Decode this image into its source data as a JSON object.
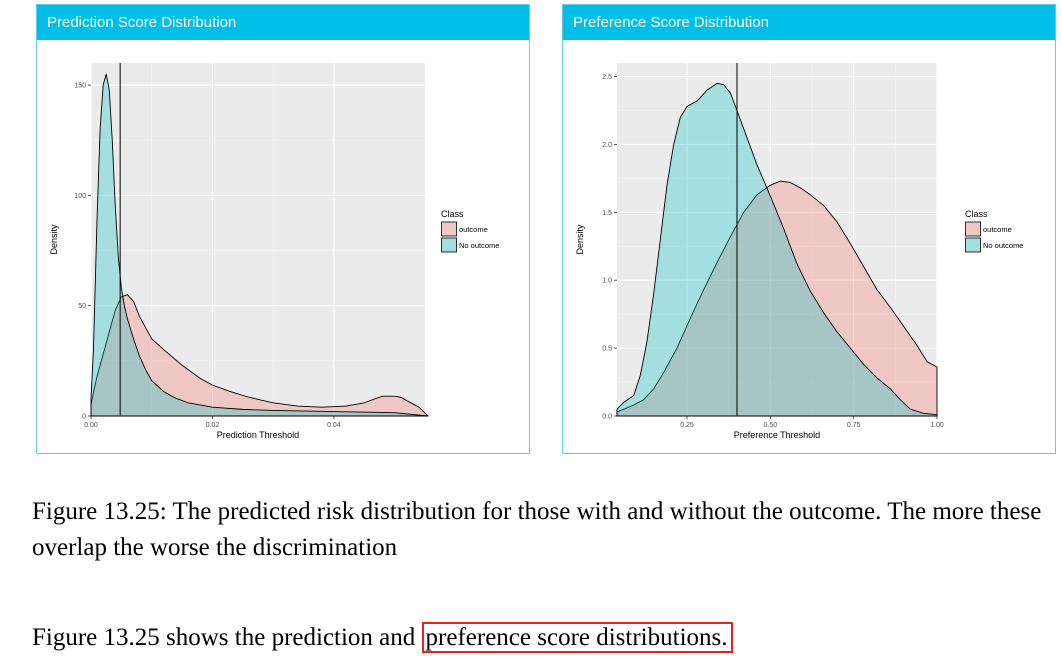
{
  "panels": [
    {
      "header": "Prediction Score Distribution"
    },
    {
      "header": "Preference Score Distribution"
    }
  ],
  "chart_data": [
    {
      "type": "area",
      "ylabel": "Density",
      "xlabel": "Prediction Threshold",
      "xlim": [
        0,
        0.055
      ],
      "ylim": [
        0,
        160
      ],
      "xticks": [
        0,
        0.02,
        0.04
      ],
      "xtick_labels": [
        "0.00",
        "0.02",
        "0.04"
      ],
      "yticks": [
        0,
        50,
        100,
        150
      ],
      "ytick_labels": [
        "0",
        "50",
        "100",
        "150"
      ],
      "vline": 0.0048,
      "legend_title": "Class",
      "legend_position": "right",
      "grid": true,
      "series": [
        {
          "name": "outcome",
          "color": "#f8766d",
          "x": [
            0.0,
            0.0005,
            0.001,
            0.002,
            0.003,
            0.004,
            0.005,
            0.006,
            0.007,
            0.008,
            0.01,
            0.012,
            0.015,
            0.018,
            0.02,
            0.023,
            0.026,
            0.03,
            0.034,
            0.038,
            0.042,
            0.045,
            0.048,
            0.05,
            0.051,
            0.052,
            0.054,
            0.0555
          ],
          "y": [
            5,
            12,
            18,
            28,
            38,
            48,
            54,
            55,
            52,
            45,
            35,
            30,
            23,
            17,
            14,
            11,
            8.5,
            6,
            4.5,
            4,
            4.5,
            6,
            9,
            9,
            8.5,
            7,
            4,
            0
          ]
        },
        {
          "name": "No outcome",
          "color": "#00bfc4",
          "x": [
            0.0,
            0.0004,
            0.001,
            0.0015,
            0.002,
            0.0025,
            0.003,
            0.0035,
            0.004,
            0.0045,
            0.005,
            0.0055,
            0.006,
            0.007,
            0.008,
            0.009,
            0.01,
            0.012,
            0.014,
            0.016,
            0.018,
            0.02,
            0.025,
            0.03,
            0.04,
            0.05,
            0.0555
          ],
          "y": [
            8,
            30,
            90,
            130,
            150,
            155,
            148,
            125,
            95,
            72,
            58,
            50,
            44,
            35,
            27,
            21,
            16,
            11,
            8,
            6,
            5,
            4,
            3,
            2.5,
            2,
            1.5,
            0
          ]
        }
      ]
    },
    {
      "type": "area",
      "ylabel": "Density",
      "xlabel": "Preference Threshold",
      "xlim": [
        0.04,
        1.0
      ],
      "ylim": [
        0,
        2.6
      ],
      "xticks": [
        0.25,
        0.5,
        0.75,
        1.0
      ],
      "xtick_labels": [
        "0.25",
        "0.50",
        "0.75",
        "1.00"
      ],
      "yticks": [
        0,
        0.5,
        1.0,
        1.5,
        2.0,
        2.5
      ],
      "ytick_labels": [
        "0.0",
        "0.5",
        "1.0",
        "1.5",
        "2.0",
        "2.5"
      ],
      "vline": 0.4,
      "legend_title": "Class",
      "legend_position": "right",
      "grid": true,
      "series": [
        {
          "name": "outcome",
          "color": "#f8766d",
          "x": [
            0.04,
            0.06,
            0.09,
            0.12,
            0.15,
            0.18,
            0.22,
            0.26,
            0.3,
            0.34,
            0.38,
            0.42,
            0.46,
            0.5,
            0.53,
            0.56,
            0.59,
            0.62,
            0.66,
            0.7,
            0.74,
            0.78,
            0.82,
            0.86,
            0.9,
            0.94,
            0.97,
            1.0,
            1.0
          ],
          "y": [
            0.03,
            0.05,
            0.08,
            0.12,
            0.2,
            0.32,
            0.5,
            0.72,
            0.93,
            1.13,
            1.32,
            1.5,
            1.63,
            1.7,
            1.73,
            1.72,
            1.68,
            1.63,
            1.55,
            1.43,
            1.27,
            1.1,
            0.93,
            0.8,
            0.66,
            0.52,
            0.4,
            0.36,
            0
          ]
        },
        {
          "name": "No outcome",
          "color": "#00bfc4",
          "x": [
            0.04,
            0.06,
            0.09,
            0.11,
            0.13,
            0.15,
            0.17,
            0.19,
            0.21,
            0.23,
            0.25,
            0.28,
            0.31,
            0.34,
            0.36,
            0.38,
            0.4,
            0.43,
            0.46,
            0.5,
            0.54,
            0.58,
            0.62,
            0.66,
            0.7,
            0.74,
            0.78,
            0.82,
            0.86,
            0.89,
            0.92,
            0.96,
            1.0,
            1.0
          ],
          "y": [
            0.05,
            0.1,
            0.15,
            0.3,
            0.55,
            0.9,
            1.3,
            1.7,
            2.0,
            2.2,
            2.28,
            2.32,
            2.4,
            2.45,
            2.44,
            2.38,
            2.25,
            2.05,
            1.85,
            1.62,
            1.38,
            1.12,
            0.92,
            0.76,
            0.62,
            0.5,
            0.38,
            0.28,
            0.2,
            0.12,
            0.05,
            0.02,
            0.01,
            0
          ]
        }
      ]
    }
  ],
  "caption": {
    "text": "Figure 13.25: The predicted risk distribution for those with and without the outcome. The more these overlap the worse the discrimination"
  },
  "body": {
    "prefix": "Figure 13.25 shows the prediction and ",
    "highlighted": "preference score distributions."
  }
}
